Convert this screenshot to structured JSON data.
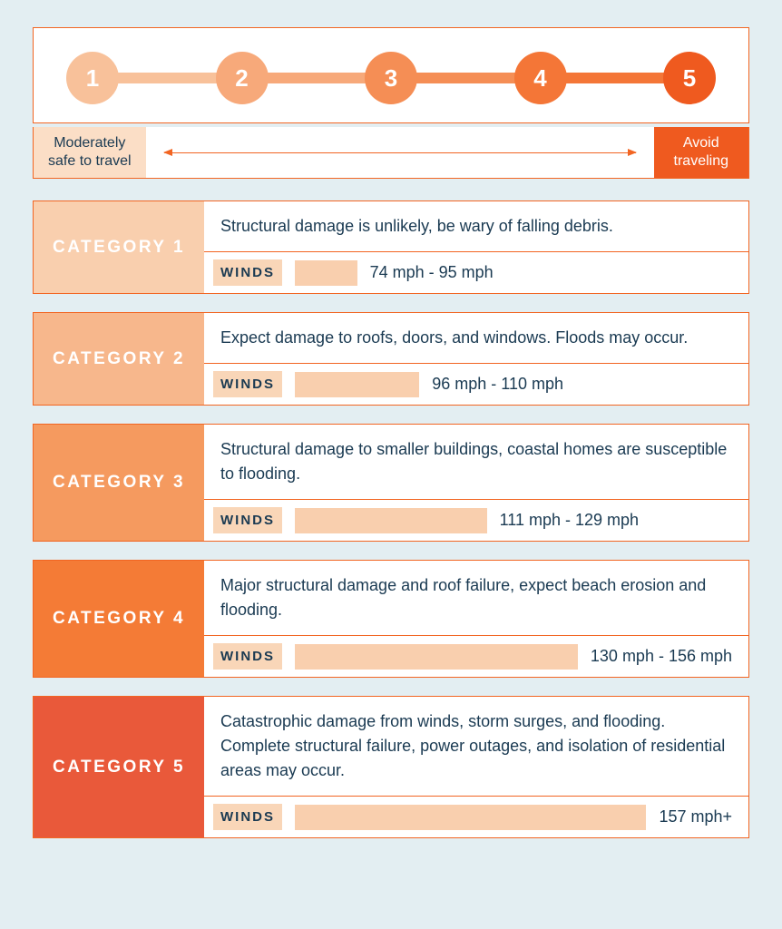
{
  "colors": {
    "page_bg": "#e3eef2",
    "border": "#f26522",
    "text": "#1a3a52",
    "winds_tag_bg": "#f9d6b8"
  },
  "scale": {
    "circles": [
      {
        "label": "1",
        "color": "#f8c19a"
      },
      {
        "label": "2",
        "color": "#f7a97a"
      },
      {
        "label": "3",
        "color": "#f58e55"
      },
      {
        "label": "4",
        "color": "#f47637"
      },
      {
        "label": "5",
        "color": "#ef5a1f"
      }
    ],
    "connectors": [
      "#f8c19a",
      "#f7a97a",
      "#f58e55",
      "#f47637"
    ]
  },
  "legend": {
    "left_label": "Moderately\nsafe to travel",
    "left_bg": "#fbdec6",
    "right_label": "Avoid\ntraveling",
    "right_bg": "#ef5a1f"
  },
  "categories": [
    {
      "title": "CATEGORY 1",
      "label_bg": "#f9cfae",
      "description": "Structural damage is unlikely, be wary of falling debris.",
      "winds_label": "WINDS",
      "bar_color": "#f9cfae",
      "bar_width_pct": 12,
      "speed": "74 mph - 95 mph"
    },
    {
      "title": "CATEGORY 2",
      "label_bg": "#f7b78c",
      "description": "Expect damage to roofs, doors, and windows. Floods may occur.",
      "winds_label": "WINDS",
      "bar_color": "#f9cfae",
      "bar_width_pct": 24,
      "speed": "96 mph - 110 mph"
    },
    {
      "title": "CATEGORY 3",
      "label_bg": "#f59a5f",
      "description": "Structural damage to smaller buildings, coastal homes are susceptible to flooding.",
      "winds_label": "WINDS",
      "bar_color": "#f9cfae",
      "bar_width_pct": 37,
      "speed": "111 mph - 129 mph"
    },
    {
      "title": "CATEGORY 4",
      "label_bg": "#f47b36",
      "description": "Major structural damage and roof failure, expect beach erosion and flooding.",
      "winds_label": "WINDS",
      "bar_color": "#f9cfae",
      "bar_width_pct": 55,
      "speed": "130 mph - 156 mph"
    },
    {
      "title": "CATEGORY 5",
      "label_bg": "#e9593a",
      "description": "Catastrophic damage from winds, storm surges, and flooding. Complete structural failure, power outages, and isolation of residential areas may occur.",
      "winds_label": "WINDS",
      "bar_color": "#f9cfae",
      "bar_width_pct": 72,
      "speed": "157 mph+"
    }
  ]
}
